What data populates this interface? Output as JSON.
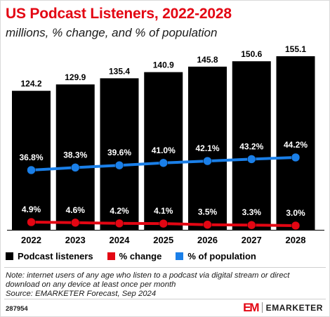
{
  "header": {
    "title": "US Podcast Listeners, 2022-2028",
    "subtitle": "millions, % change, and % of population"
  },
  "chart_data": {
    "type": "bar",
    "categories": [
      "2022",
      "2023",
      "2024",
      "2025",
      "2026",
      "2027",
      "2028"
    ],
    "series": [
      {
        "name": "Podcast listeners",
        "type": "bar",
        "color": "#000000",
        "values": [
          124.2,
          129.9,
          135.4,
          140.9,
          145.8,
          150.6,
          155.1
        ],
        "labels": [
          "124.2",
          "129.9",
          "135.4",
          "140.9",
          "145.8",
          "150.6",
          "155.1"
        ]
      },
      {
        "name": "% change",
        "type": "line",
        "color": "#e30613",
        "values": [
          4.9,
          4.6,
          4.2,
          4.1,
          3.5,
          3.3,
          3.0
        ],
        "labels": [
          "4.9%",
          "4.6%",
          "4.2%",
          "4.1%",
          "3.5%",
          "3.3%",
          "3.0%"
        ]
      },
      {
        "name": "% of population",
        "type": "line",
        "color": "#1a7fe8",
        "values": [
          36.8,
          38.3,
          39.6,
          41.0,
          42.1,
          43.2,
          44.2
        ],
        "labels": [
          "36.8%",
          "38.3%",
          "39.6%",
          "41.0%",
          "42.1%",
          "43.2%",
          "44.2%"
        ]
      }
    ],
    "legend_position": "bottom-left",
    "grid": false
  },
  "legend": {
    "items": [
      {
        "label": "Podcast listeners",
        "color": "#000000"
      },
      {
        "label": "% change",
        "color": "#e30613"
      },
      {
        "label": "% of population",
        "color": "#1a7fe8"
      }
    ]
  },
  "footer": {
    "note": "Note: internet users of any age who listen to a podcast via digital stream or direct download on any device at least once per month",
    "source": "Source: EMARKETER Forecast, Sep 2024",
    "chart_id": "287954",
    "brand_mark": "EM",
    "brand_name": "EMARKETER"
  }
}
